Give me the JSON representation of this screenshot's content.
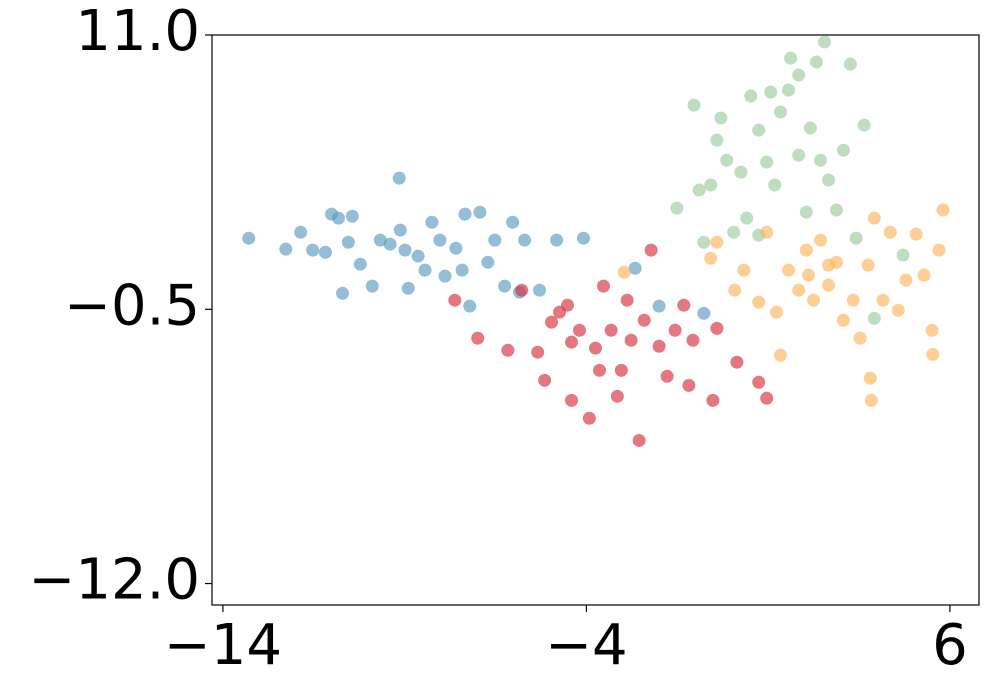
{
  "chart_data": {
    "type": "scatter",
    "xlim": [
      -14.3,
      6.8
    ],
    "ylim": [
      -12.9,
      11.0
    ],
    "xticks": [
      {
        "value": -14,
        "label": "−14"
      },
      {
        "value": -4,
        "label": "−4"
      },
      6
    ],
    "yticks": [
      {
        "value": 11.0,
        "label": "11.0"
      },
      {
        "value": -0.5,
        "label": "−0.5"
      },
      {
        "value": -12.0,
        "label": "−12.0"
      }
    ],
    "series": [
      {
        "color": "#5b9bc0",
        "x": [
          -13.29,
          -12.27,
          -11.86,
          -11.53,
          -11.18,
          -11.01,
          -10.82,
          -10.55,
          -10.44,
          -10.22,
          -9.89,
          -9.67,
          -9.4,
          -9.15,
          -9.12,
          -8.99,
          -8.9,
          -8.63,
          -8.25,
          -8.03,
          -7.89,
          -7.59,
          -7.34,
          -7.21,
          -6.93,
          -6.71,
          -6.52,
          -6.25,
          -6.03,
          -5.84,
          -5.7,
          -5.29,
          -4.82,
          -4.08,
          -2.66,
          -2.0,
          -0.77,
          -10.71,
          -8.44,
          -7.42
        ],
        "values": [
          2.48,
          2.02,
          2.73,
          1.98,
          1.89,
          3.49,
          3.32,
          2.31,
          3.4,
          1.39,
          0.47,
          2.4,
          2.23,
          5.0,
          2.82,
          1.98,
          0.38,
          1.73,
          3.15,
          2.4,
          0.89,
          2.06,
          3.49,
          -0.37,
          3.57,
          1.47,
          2.4,
          0.47,
          3.15,
          0.22,
          2.4,
          0.3,
          2.4,
          2.48,
          1.22,
          -0.37,
          -0.67,
          0.17,
          1.14,
          1.14
        ]
      },
      {
        "color": "#d62f3c",
        "x": [
          -7.62,
          -6.99,
          -5.78,
          -5.34,
          -5.15,
          -4.96,
          -4.74,
          -4.52,
          -4.41,
          -4.19,
          -3.92,
          -3.75,
          -3.53,
          -3.32,
          -3.15,
          -3.04,
          -2.88,
          -2.77,
          -2.55,
          -2.41,
          -2.22,
          -2.0,
          -1.78,
          -1.56,
          -1.32,
          -1.18,
          -1.07,
          -0.52,
          -0.41,
          0.14,
          0.74,
          0.96,
          -4.41,
          -3.64,
          -6.16
        ],
        "values": [
          -0.12,
          -1.71,
          0.3,
          -2.3,
          -3.48,
          -1.04,
          -0.62,
          -0.33,
          -1.88,
          -1.38,
          -5.07,
          -2.13,
          0.47,
          -1.38,
          -4.15,
          -3.06,
          -0.12,
          -1.8,
          -6.0,
          -0.96,
          1.98,
          -2.05,
          -3.31,
          -1.38,
          -0.33,
          -3.69,
          -1.8,
          -4.32,
          -1.3,
          -2.72,
          -3.56,
          -4.23,
          -4.32,
          -3.06,
          -2.22
        ]
      },
      {
        "color": "#9ccb9c",
        "x": [
          -1.51,
          -1.04,
          -0.9,
          -0.77,
          -0.58,
          -0.41,
          -0.3,
          -0.14,
          0.05,
          0.25,
          0.41,
          0.52,
          0.74,
          0.96,
          1.07,
          1.18,
          1.34,
          1.56,
          1.62,
          1.84,
          2.05,
          2.16,
          2.33,
          2.44,
          2.55,
          2.66,
          2.88,
          3.07,
          3.26,
          3.42,
          3.64,
          3.92,
          4.71,
          0.74,
          1.84
        ],
        "values": [
          3.74,
          8.06,
          4.5,
          2.31,
          4.71,
          6.59,
          7.52,
          5.75,
          2.73,
          5.25,
          3.32,
          8.44,
          7.01,
          5.67,
          8.61,
          4.71,
          7.77,
          8.69,
          10.03,
          5.96,
          3.57,
          7.1,
          9.87,
          5.75,
          10.71,
          4.92,
          3.66,
          6.17,
          9.78,
          2.48,
          7.22,
          -0.88,
          1.77,
          2.61,
          9.32
        ]
      },
      {
        "color": "#fdb35a",
        "x": [
          -2.96,
          -0.58,
          -0.41,
          0.08,
          0.33,
          0.74,
          0.96,
          1.23,
          1.34,
          1.56,
          1.84,
          2.05,
          2.25,
          2.44,
          2.66,
          2.88,
          3.07,
          3.34,
          3.53,
          3.75,
          3.92,
          4.16,
          4.36,
          4.58,
          4.79,
          5.07,
          5.29,
          5.51,
          5.7,
          5.81,
          5.53,
          3.81,
          3.84,
          2.66,
          2.11
        ],
        "values": [
          1.05,
          1.64,
          2.31,
          0.3,
          1.14,
          -0.2,
          2.73,
          -0.62,
          -2.43,
          1.14,
          0.3,
          1.98,
          -0.12,
          2.4,
          0.51,
          1.47,
          -0.96,
          -0.12,
          -1.71,
          1.35,
          3.32,
          -0.12,
          2.73,
          -0.54,
          0.72,
          2.65,
          0.93,
          -1.38,
          1.98,
          3.66,
          -2.39,
          -3.39,
          -4.32,
          1.35,
          0.93
        ]
      }
    ]
  }
}
